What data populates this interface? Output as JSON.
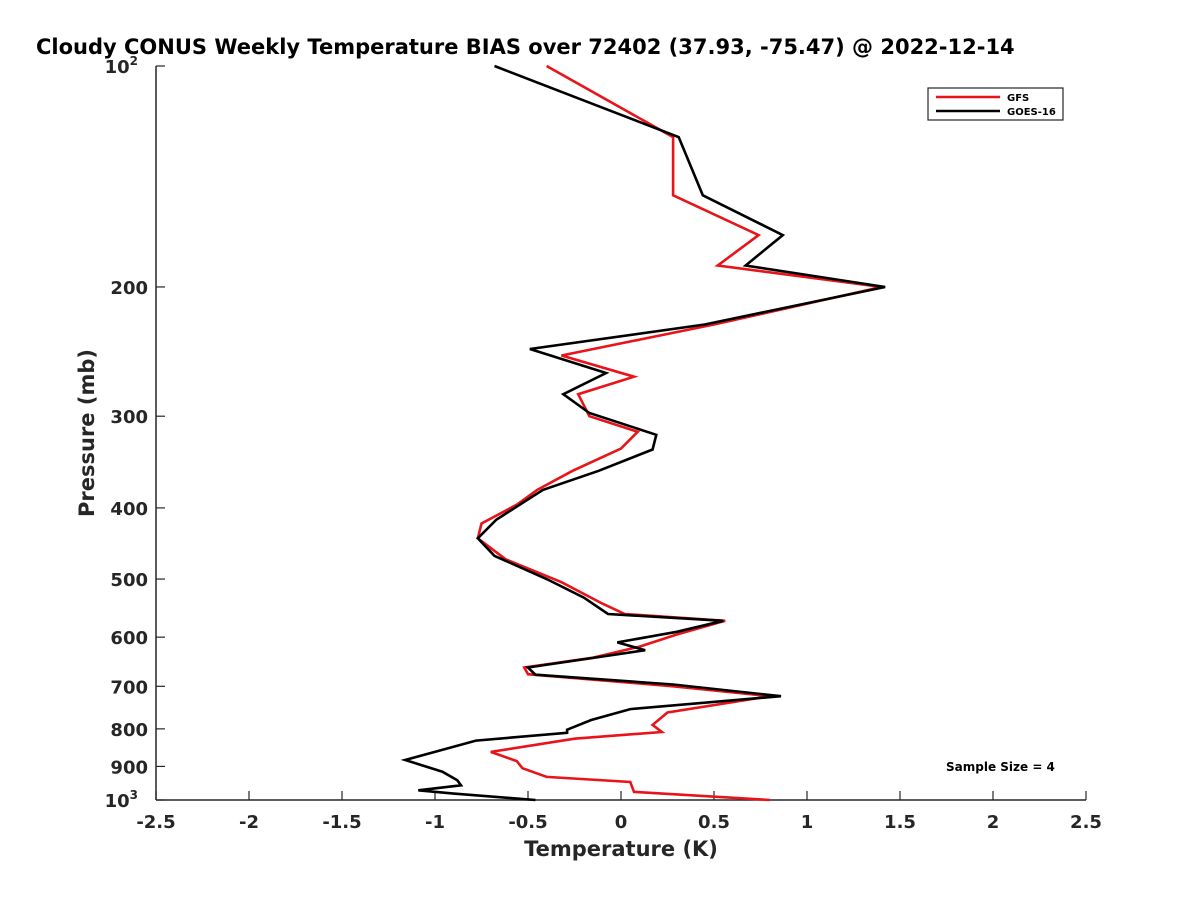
{
  "chart_data": {
    "type": "line",
    "title": "Cloudy CONUS Weekly Temperature BIAS over 72402 (37.93, -75.47) @ 2022-12-14",
    "xlabel": "Temperature (K)",
    "ylabel": "Pressure (mb)",
    "xlim": [
      -2.5,
      2.5
    ],
    "ylim": [
      100,
      1000
    ],
    "yscale": "log",
    "yaxis_reversed": true,
    "grid": false,
    "legend_position": "top-right",
    "x_ticks": [
      "-2.5",
      "-2",
      "-1.5",
      "-1",
      "-0.5",
      "0",
      "0.5",
      "1",
      "1.5",
      "2",
      "2.5"
    ],
    "x_tick_values": [
      -2.5,
      -2,
      -1.5,
      -1,
      -0.5,
      0,
      0.5,
      1,
      1.5,
      2,
      2.5
    ],
    "y_ticks": [
      {
        "value": 100,
        "base": "10",
        "exp": "2"
      },
      {
        "value": 200,
        "base": "200",
        "exp": ""
      },
      {
        "value": 300,
        "base": "300",
        "exp": ""
      },
      {
        "value": 400,
        "base": "400",
        "exp": ""
      },
      {
        "value": 500,
        "base": "500",
        "exp": ""
      },
      {
        "value": 600,
        "base": "600",
        "exp": ""
      },
      {
        "value": 700,
        "base": "700",
        "exp": ""
      },
      {
        "value": 800,
        "base": "800",
        "exp": ""
      },
      {
        "value": 900,
        "base": "900",
        "exp": ""
      },
      {
        "value": 1000,
        "base": "10",
        "exp": "3"
      }
    ],
    "series": [
      {
        "name": "GFS",
        "color": "#e8141a",
        "points": [
          [
            -0.4,
            100
          ],
          [
            0.28,
            125
          ],
          [
            0.28,
            150
          ],
          [
            0.74,
            170
          ],
          [
            0.52,
            187
          ],
          [
            1.4,
            200
          ],
          [
            0.5,
            225
          ],
          [
            -0.32,
            248
          ],
          [
            0.07,
            265
          ],
          [
            -0.23,
            280
          ],
          [
            -0.17,
            300
          ],
          [
            0.09,
            315
          ],
          [
            0.0,
            332
          ],
          [
            -0.26,
            356
          ],
          [
            -0.45,
            378
          ],
          [
            -0.56,
            396
          ],
          [
            -0.75,
            420
          ],
          [
            -0.77,
            440
          ],
          [
            -0.62,
            470
          ],
          [
            -0.32,
            505
          ],
          [
            -0.1,
            540
          ],
          [
            0.02,
            558
          ],
          [
            0.56,
            570
          ],
          [
            0.3,
            595
          ],
          [
            0.1,
            618
          ],
          [
            -0.15,
            640
          ],
          [
            -0.52,
            660
          ],
          [
            -0.5,
            674
          ],
          [
            0.28,
            700
          ],
          [
            0.8,
            722
          ],
          [
            0.25,
            760
          ],
          [
            0.17,
            790
          ],
          [
            0.22,
            808
          ],
          [
            -0.25,
            825
          ],
          [
            -0.7,
            860
          ],
          [
            -0.56,
            885
          ],
          [
            -0.53,
            905
          ],
          [
            -0.4,
            930
          ],
          [
            0.05,
            945
          ],
          [
            0.07,
            975
          ],
          [
            0.8,
            1000
          ]
        ]
      },
      {
        "name": "GOES-16",
        "color": "#000000",
        "points": [
          [
            -0.68,
            100
          ],
          [
            0.31,
            125
          ],
          [
            0.44,
            150
          ],
          [
            0.87,
            170
          ],
          [
            0.67,
            187
          ],
          [
            1.42,
            200
          ],
          [
            0.45,
            225
          ],
          [
            -0.49,
            243
          ],
          [
            -0.08,
            262
          ],
          [
            -0.31,
            280
          ],
          [
            -0.17,
            297
          ],
          [
            0.19,
            318
          ],
          [
            0.17,
            333
          ],
          [
            -0.12,
            356
          ],
          [
            -0.42,
            378
          ],
          [
            -0.67,
            415
          ],
          [
            -0.77,
            440
          ],
          [
            -0.68,
            465
          ],
          [
            -0.4,
            500
          ],
          [
            -0.2,
            530
          ],
          [
            -0.07,
            558
          ],
          [
            0.55,
            570
          ],
          [
            0.3,
            590
          ],
          [
            -0.02,
            610
          ],
          [
            0.13,
            625
          ],
          [
            -0.5,
            660
          ],
          [
            -0.46,
            675
          ],
          [
            0.28,
            696
          ],
          [
            0.86,
            722
          ],
          [
            0.05,
            752
          ],
          [
            -0.16,
            778
          ],
          [
            -0.29,
            802
          ],
          [
            -0.29,
            810
          ],
          [
            -0.78,
            830
          ],
          [
            -1.16,
            882
          ],
          [
            -0.96,
            915
          ],
          [
            -0.88,
            940
          ],
          [
            -0.86,
            955
          ],
          [
            -1.09,
            970
          ],
          [
            -0.9,
            980
          ],
          [
            -0.46,
            1000
          ]
        ]
      }
    ],
    "annotation": "Sample Size = 4"
  }
}
